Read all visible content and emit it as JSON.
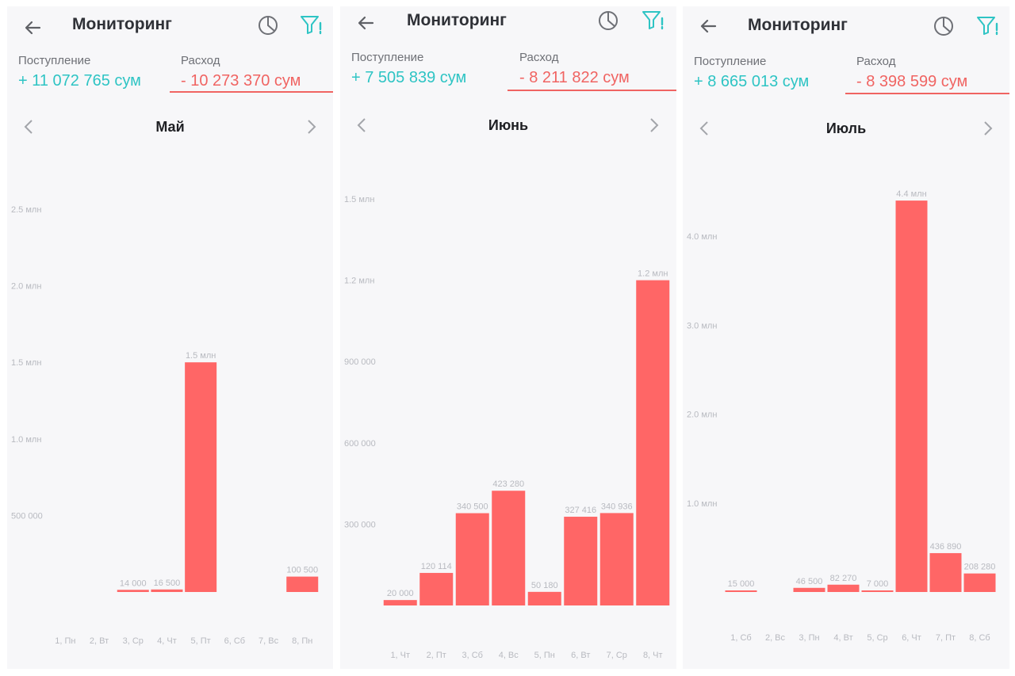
{
  "app": {
    "colors": {
      "income": "#2ec4c4",
      "expense": "#f06462",
      "bar": "#ff6666",
      "axis_text": "#b8bac0"
    },
    "icons": {
      "back": "arrow-left-icon",
      "stats": "pie-chart-icon",
      "filter": "filter-alert-icon",
      "prev": "chevron-left-icon",
      "next": "chevron-right-icon"
    }
  },
  "screens": [
    {
      "title": "Мониторинг",
      "income_label": "Поступление",
      "income_value": "+  11 072 765 сум",
      "expense_label": "Расход",
      "expense_value": "-  10 273 370 сум",
      "month": "Май",
      "chart_data": {
        "type": "bar",
        "categories": [
          "1, Пн",
          "2, Вт",
          "3, Ср",
          "4, Чт",
          "5, Пт",
          "6, Сб",
          "7, Вс",
          "8, Пн"
        ],
        "values": [
          0,
          0,
          14000,
          16500,
          1500000,
          0,
          0,
          100500
        ],
        "value_labels": [
          "",
          "",
          "14 000",
          "16 500",
          "1.5 млн",
          "",
          "",
          "100 500"
        ],
        "y_ticks": [
          500000,
          1000000,
          1500000,
          2000000,
          2500000
        ],
        "y_tick_labels": [
          "500 000",
          "1.0 млн",
          "1.5 млн",
          "2.0 млн",
          "2.5 млн"
        ],
        "ylim": [
          0,
          2500000
        ]
      }
    },
    {
      "title": "Мониторинг",
      "income_label": "Поступление",
      "income_value": "+  7 505 839 сум",
      "expense_label": "Расход",
      "expense_value": "-  8 211 822 сум",
      "month": "Июнь",
      "chart_data": {
        "type": "bar",
        "categories": [
          "1, Чт",
          "2, Пт",
          "3, Сб",
          "4, Вс",
          "5, Пн",
          "6, Вт",
          "7, Ср",
          "8, Чт"
        ],
        "values": [
          20000,
          120114,
          340500,
          423280,
          50180,
          327416,
          340936,
          1200000
        ],
        "value_labels": [
          "20 000",
          "120 114",
          "340 500",
          "423 280",
          "50 180",
          "327 416",
          "340 936",
          "1.2 млн"
        ],
        "y_ticks": [
          300000,
          600000,
          900000,
          1200000,
          1500000
        ],
        "y_tick_labels": [
          "300 000",
          "600 000",
          "900 000",
          "1.2 млн",
          "1.5 млн"
        ],
        "ylim": [
          0,
          1500000
        ]
      }
    },
    {
      "title": "Мониторинг",
      "income_label": "Поступление",
      "income_value": "+  8 665 013 сум",
      "expense_label": "Расход",
      "expense_value": "-  8 398 599 сум",
      "month": "Июль",
      "chart_data": {
        "type": "bar",
        "categories": [
          "1, Сб",
          "2, Вс",
          "3, Пн",
          "4, Вт",
          "5, Ср",
          "6, Чт",
          "7, Пт",
          "8, Сб"
        ],
        "values": [
          15000,
          0,
          46500,
          82270,
          7000,
          4400000,
          436890,
          208280
        ],
        "value_labels": [
          "15 000",
          "",
          "46 500",
          "82 270",
          "7 000",
          "4.4 млн",
          "436 890",
          "208 280"
        ],
        "y_ticks": [
          1000000,
          2000000,
          3000000,
          4000000
        ],
        "y_tick_labels": [
          "1.0 млн",
          "2.0 млн",
          "3.0 млн",
          "4.0 млн"
        ],
        "ylim": [
          0,
          4000000
        ]
      }
    }
  ]
}
